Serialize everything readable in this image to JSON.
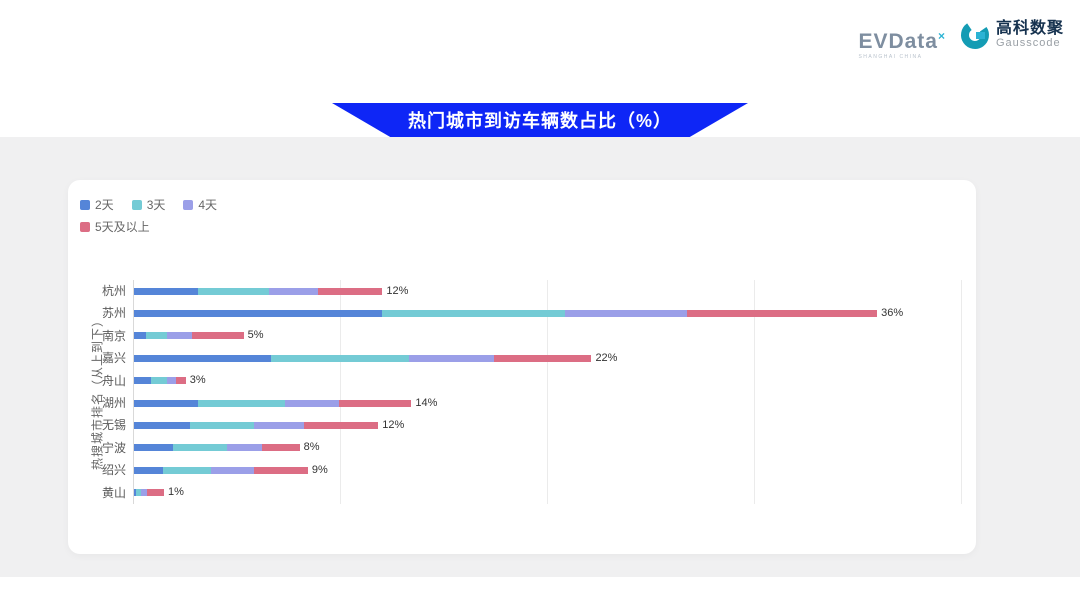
{
  "header": {
    "evdata": {
      "wordmark": "EVData",
      "superscript": "×",
      "subtext": "SHANGHAI CHINA"
    },
    "gausscode": {
      "name_cn": "高科数聚",
      "name_en": "Gausscode"
    }
  },
  "banner": {
    "title": "热门城市到访车辆数占比（%）",
    "color": "#0E26F6"
  },
  "chart_data": {
    "type": "bar",
    "orientation": "horizontal",
    "stacked": true,
    "title": "热门城市到访车辆数占比（%）",
    "xlabel": "",
    "ylabel": "热搜城市排名（从上到下）",
    "xlim": [
      0,
      40
    ],
    "grid_step_pct": 10,
    "grid": true,
    "legend_position": "top-left",
    "legend": [
      "2天",
      "3天",
      "4天",
      "5天及以上"
    ],
    "colors": [
      "#5585D8",
      "#74CBD5",
      "#9B9FE8",
      "#DC6D84"
    ],
    "categories": [
      "杭州",
      "苏州",
      "南京",
      "嘉兴",
      "舟山",
      "湖州",
      "无锡",
      "宁波",
      "绍兴",
      "黄山"
    ],
    "series": [
      {
        "name": "2天",
        "values": [
          3.1,
          12.0,
          0.6,
          6.6,
          0.8,
          3.1,
          2.7,
          1.9,
          1.4,
          0.1
        ]
      },
      {
        "name": "3天",
        "values": [
          3.4,
          8.8,
          1.0,
          6.7,
          0.8,
          4.2,
          3.1,
          2.6,
          2.3,
          0.25
        ]
      },
      {
        "name": "4天",
        "values": [
          2.4,
          5.9,
          1.2,
          4.1,
          0.45,
          2.6,
          2.4,
          1.7,
          2.1,
          0.3
        ]
      },
      {
        "name": "5天及以上",
        "values": [
          3.1,
          9.2,
          2.5,
          4.7,
          0.45,
          3.5,
          3.6,
          1.8,
          2.6,
          0.8
        ]
      }
    ],
    "total_labels": [
      "12%",
      "36%",
      "5%",
      "22%",
      "3%",
      "14%",
      "12%",
      "8%",
      "9%",
      "1%"
    ]
  }
}
